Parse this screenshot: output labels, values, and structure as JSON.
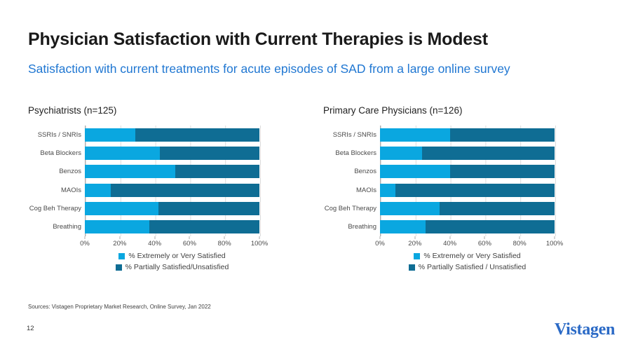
{
  "slide": {
    "title": "Physician Satisfaction with Current Therapies is Modest",
    "subtitle": "Satisfaction with current treatments for acute episodes of SAD from a large online survey",
    "sources": "Sources: Vistagen Proprietary Market Research, Online Survey, Jan 2022",
    "page_number": "12",
    "logo_text": "Vistagen"
  },
  "colors": {
    "light_blue": "#0AA7E0",
    "dark_blue": "#0F6D94",
    "subtitle_blue": "#2077D2",
    "logo_blue": "#2B6AC6"
  },
  "chart_data": [
    {
      "type": "bar",
      "orientation": "horizontal",
      "stacked": true,
      "title": "Psychiatrists (n=125)",
      "categories": [
        "SSRIs / SNRIs",
        "Beta Blockers",
        "Benzos",
        "MAOIs",
        "Cog Beh Therapy",
        "Breathing"
      ],
      "series": [
        {
          "name": "% Extremely or Very Satisfied",
          "values": [
            29,
            43,
            52,
            15,
            42,
            37
          ]
        },
        {
          "name": "% Partially Satisfied/Unsatisfied",
          "values": [
            71,
            57,
            48,
            85,
            58,
            63
          ]
        }
      ],
      "xlim": [
        0,
        100
      ],
      "ticks": [
        "0%",
        "20%",
        "40%",
        "60%",
        "80%",
        "100%"
      ],
      "grid": true,
      "legend_position": "bottom"
    },
    {
      "type": "bar",
      "orientation": "horizontal",
      "stacked": true,
      "title": "Primary Care Physicians (n=126)",
      "categories": [
        "SSRIs / SNRIs",
        "Beta Blockers",
        "Benzos",
        "MAOIs",
        "Cog Beh Therapy",
        "Breathing"
      ],
      "series": [
        {
          "name": "% Extremely or Very Satisfied",
          "values": [
            40,
            24,
            40,
            9,
            34,
            26
          ]
        },
        {
          "name": "% Partially Satisfied / Unsatisfied",
          "values": [
            60,
            76,
            60,
            91,
            66,
            74
          ]
        }
      ],
      "xlim": [
        0,
        100
      ],
      "ticks": [
        "0%",
        "20%",
        "40%",
        "60%",
        "80%",
        "100%"
      ],
      "grid": true,
      "legend_position": "bottom"
    }
  ]
}
